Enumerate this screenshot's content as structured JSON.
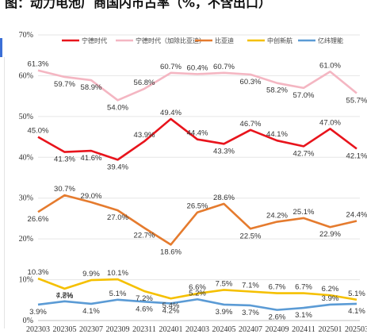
{
  "page": {
    "title": "图：动力电池厂商国内市占率（%，不含出口）"
  },
  "chart_data": {
    "type": "line",
    "title": "图：动力电池厂商国内市占率（%，不含出口）",
    "y_unit": "%",
    "ylim": [
      0,
      70
    ],
    "yticks": [
      0,
      10,
      20,
      30,
      40,
      50,
      60,
      70
    ],
    "grid": true,
    "legend_position": "top",
    "categories": [
      "202303",
      "202305",
      "202307",
      "202309",
      "202311",
      "202401",
      "202403",
      "202405",
      "202407",
      "202409",
      "202411",
      "202501",
      "202503"
    ],
    "series": [
      {
        "name": "宁德时代",
        "color": "#e8141c",
        "values": [
          45.0,
          41.3,
          41.6,
          39.4,
          43.9,
          49.4,
          44.4,
          43.3,
          46.7,
          44.1,
          42.7,
          47.0,
          42.1
        ],
        "labels": [
          "45.0%",
          "41.3%",
          "41.6%",
          "39.4%",
          "43.9%",
          "49.4%",
          "44.4%",
          "43.3%",
          "46.7%",
          "44.1%",
          "42.7%",
          "47.0%",
          "42.1%"
        ]
      },
      {
        "name": "宁德时代（加除比亚迪）",
        "color": "#f4b6c2",
        "values": [
          61.3,
          59.7,
          58.9,
          54.0,
          56.8,
          60.7,
          60.4,
          60.7,
          60.3,
          58.2,
          57.0,
          61.0,
          55.7
        ],
        "labels": [
          "61.3%",
          "59.7%",
          "58.9%",
          "54.0%",
          "56.8%",
          "60.7%",
          "60.4%",
          "60.7%",
          "60.3%",
          "58.2%",
          "57.0%",
          "61.0%",
          "55.7%"
        ]
      },
      {
        "name": "比亚迪",
        "color": "#e57b2e",
        "values": [
          26.6,
          30.7,
          29.0,
          27.0,
          22.7,
          18.6,
          26.5,
          28.6,
          22.5,
          24.2,
          25.1,
          22.9,
          24.4
        ],
        "labels": [
          "26.6%",
          "30.7%",
          "29.0%",
          "27.0%",
          "22.7%",
          "18.6%",
          "26.5%",
          "28.6%",
          "22.5%",
          "24.2%",
          "25.1%",
          "22.9%",
          "24.4%"
        ]
      },
      {
        "name": "中创新航",
        "color": "#f5c000",
        "values": [
          10.3,
          7.8,
          9.9,
          10.1,
          7.2,
          5.4,
          6.6,
          7.5,
          7.1,
          6.7,
          6.7,
          6.2,
          5.1
        ],
        "labels": [
          "10.3%",
          "7.8%",
          "9.9%",
          "10.1%",
          "7.2%",
          "5.4%",
          "6.6%",
          "7.5%",
          "7.1%",
          "6.7%",
          "6.7%",
          "6.2%",
          "5.1%"
        ]
      },
      {
        "name": "亿纬锂能",
        "color": "#5b9bd5",
        "values": [
          3.9,
          4.7,
          4.1,
          5.1,
          4.6,
          4.2,
          5.2,
          3.9,
          3.7,
          2.6,
          3.1,
          3.9,
          4.1
        ],
        "labels": [
          "3.9%",
          "4.7%",
          "4.1%",
          "5.1%",
          "4.6%",
          "4.2%",
          "5.2%",
          "3.9%",
          "3.7%",
          "2.6%",
          "3.1%",
          "3.9%",
          "4.1%"
        ]
      }
    ]
  }
}
